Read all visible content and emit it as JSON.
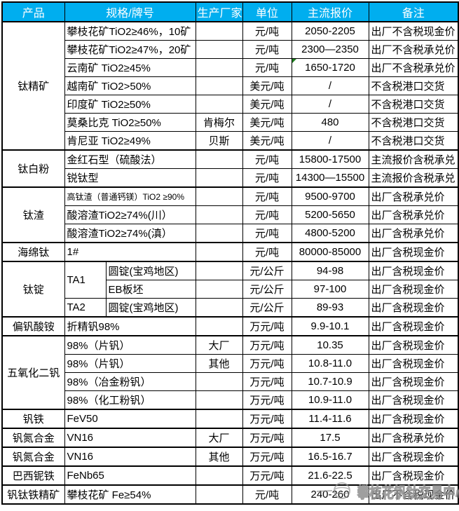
{
  "colors": {
    "header_bg": "#00AEEF",
    "header_fg": "#FFFFFF",
    "grid": "#000000",
    "comment_marker": "#1E7F1E",
    "watermark": "#8F8F8F"
  },
  "header": {
    "columns": [
      "产品",
      "规格/牌号",
      "生产厂家",
      "单位",
      "主流报价",
      "备注"
    ]
  },
  "rows": [
    {
      "group_start": true,
      "cells": [
        {
          "type": "product",
          "text": "钛精矿",
          "rowspan": 7
        },
        {
          "type": "spec",
          "text": "攀枝花矿TiO2≥46%，10矿"
        },
        {
          "type": "maker",
          "text": ""
        },
        {
          "type": "unit",
          "text": "元/吨"
        },
        {
          "type": "price",
          "text": "2050-2205"
        },
        {
          "type": "note",
          "text": "出厂不含税现金价"
        }
      ]
    },
    {
      "cells": [
        {
          "type": "spec",
          "text": "攀枝花矿TiO2≥47%，20矿"
        },
        {
          "type": "maker",
          "text": ""
        },
        {
          "type": "unit",
          "text": "元/吨"
        },
        {
          "type": "price",
          "text": "2300—2350"
        },
        {
          "type": "note",
          "text": "出厂不含税承兑价"
        }
      ]
    },
    {
      "cells": [
        {
          "type": "spec",
          "text": "云南矿 TiO2≥45%"
        },
        {
          "type": "maker",
          "text": ""
        },
        {
          "type": "unit",
          "text": "元/吨"
        },
        {
          "type": "price",
          "text": "1650-1720",
          "marker": true
        },
        {
          "type": "note",
          "text": "出厂不含税承兑价"
        }
      ]
    },
    {
      "cells": [
        {
          "type": "spec",
          "text": "越南矿 TiO2>50%"
        },
        {
          "type": "maker",
          "text": ""
        },
        {
          "type": "unit",
          "text": "美元/吨"
        },
        {
          "type": "price",
          "text": "/"
        },
        {
          "type": "note",
          "text": "不含税港口交货"
        }
      ]
    },
    {
      "cells": [
        {
          "type": "spec",
          "text": "印度矿 TiO2≥50%"
        },
        {
          "type": "maker",
          "text": ""
        },
        {
          "type": "unit",
          "text": "美元/吨"
        },
        {
          "type": "price",
          "text": "/"
        },
        {
          "type": "note",
          "text": "不含税港口交货"
        }
      ]
    },
    {
      "cells": [
        {
          "type": "spec",
          "text": "莫桑比克 TiO2≥50%"
        },
        {
          "type": "maker",
          "text": "肯梅尔"
        },
        {
          "type": "unit",
          "text": "美元/吨"
        },
        {
          "type": "price",
          "text": "480"
        },
        {
          "type": "note",
          "text": "不含税港口交货"
        }
      ]
    },
    {
      "cells": [
        {
          "type": "spec",
          "text": "肯尼亚 TiO2≥49%"
        },
        {
          "type": "maker",
          "text": "贝斯"
        },
        {
          "type": "unit",
          "text": "美元/吨"
        },
        {
          "type": "price",
          "text": "/"
        },
        {
          "type": "note",
          "text": "不含税港口交货"
        }
      ]
    },
    {
      "group_start": true,
      "cells": [
        {
          "type": "product",
          "text": "钛白粉",
          "rowspan": 2
        },
        {
          "type": "spec",
          "text": "金红石型（硫酸法）"
        },
        {
          "type": "maker",
          "text": ""
        },
        {
          "type": "unit",
          "text": "元/吨"
        },
        {
          "type": "price",
          "text": "15800-17500"
        },
        {
          "type": "note",
          "text": "主流报价含税承兑"
        }
      ]
    },
    {
      "cells": [
        {
          "type": "spec",
          "text": "锐钛型"
        },
        {
          "type": "maker",
          "text": ""
        },
        {
          "type": "unit",
          "text": "元/吨"
        },
        {
          "type": "price",
          "text": "14300—15500"
        },
        {
          "type": "note",
          "text": "主流报价含税承兑"
        }
      ]
    },
    {
      "group_start": true,
      "cells": [
        {
          "type": "product",
          "text": "钛渣",
          "rowspan": 3
        },
        {
          "type": "spec",
          "text": "高钛渣（普通钙镁）TiO2 ≥90%"
        },
        {
          "type": "maker",
          "text": ""
        },
        {
          "type": "unit",
          "text": "元/吨"
        },
        {
          "type": "price",
          "text": "9500-9700"
        },
        {
          "type": "note",
          "text": "出厂含税承兑价"
        }
      ]
    },
    {
      "cells": [
        {
          "type": "spec",
          "text": "酸溶渣TiO2≥74%(川）"
        },
        {
          "type": "maker",
          "text": ""
        },
        {
          "type": "unit",
          "text": "元/吨"
        },
        {
          "type": "price",
          "text": "5200-5650"
        },
        {
          "type": "note",
          "text": "出厂含税承兑价"
        }
      ]
    },
    {
      "cells": [
        {
          "type": "spec",
          "text": "酸溶渣TiO2≥74%(滇）"
        },
        {
          "type": "maker",
          "text": ""
        },
        {
          "type": "unit",
          "text": "元/吨"
        },
        {
          "type": "price",
          "text": "4800-5200"
        },
        {
          "type": "note",
          "text": "出厂含税承兑价"
        }
      ]
    },
    {
      "group_start": true,
      "cells": [
        {
          "type": "product",
          "text": "海绵钛",
          "rowspan": 1
        },
        {
          "type": "spec",
          "text": "1#"
        },
        {
          "type": "maker",
          "text": ""
        },
        {
          "type": "unit",
          "text": "元/吨"
        },
        {
          "type": "price",
          "text": "80000-85000"
        },
        {
          "type": "note",
          "text": "出厂含税现金价"
        }
      ]
    },
    {
      "group_start": true,
      "cells": [
        {
          "type": "product",
          "text": "钛锭",
          "rowspan": 3
        },
        {
          "type": "specA",
          "text": "TA1",
          "rowspan": 2
        },
        {
          "type": "specB",
          "text": "圆锭(宝鸡地区)"
        },
        {
          "type": "maker",
          "text": ""
        },
        {
          "type": "unit",
          "text": "元/公斤"
        },
        {
          "type": "price",
          "text": "94-98"
        },
        {
          "type": "note",
          "text": "出厂含税现金价"
        }
      ]
    },
    {
      "cells": [
        {
          "type": "specB",
          "text": "EB板坯"
        },
        {
          "type": "maker",
          "text": ""
        },
        {
          "type": "unit",
          "text": "元/公斤"
        },
        {
          "type": "price",
          "text": "97-100"
        },
        {
          "type": "note",
          "text": "出厂含税现金价"
        }
      ]
    },
    {
      "cells": [
        {
          "type": "specA",
          "text": "TA2"
        },
        {
          "type": "specB",
          "text": "圆锭(宝鸡地区)"
        },
        {
          "type": "maker",
          "text": ""
        },
        {
          "type": "unit",
          "text": "元/公斤"
        },
        {
          "type": "price",
          "text": "89-93"
        },
        {
          "type": "note",
          "text": "出厂含税现金价"
        }
      ]
    },
    {
      "group_start": true,
      "cells": [
        {
          "type": "product",
          "text": "偏钒酸铵",
          "rowspan": 1
        },
        {
          "type": "spec",
          "text": "折精钒98%"
        },
        {
          "type": "maker",
          "text": ""
        },
        {
          "type": "unit",
          "text": "万元/吨"
        },
        {
          "type": "price",
          "text": "9.9-10.1"
        },
        {
          "type": "note",
          "text": "出厂含税现金价"
        }
      ]
    },
    {
      "group_start": true,
      "cells": [
        {
          "type": "product",
          "text": "五氧化二钒",
          "rowspan": 4
        },
        {
          "type": "spec",
          "text": "98%（片钒）"
        },
        {
          "type": "maker",
          "text": "大厂"
        },
        {
          "type": "unit",
          "text": "万元/吨"
        },
        {
          "type": "price",
          "text": "10.35"
        },
        {
          "type": "note",
          "text": "出厂含税现金价"
        }
      ]
    },
    {
      "cells": [
        {
          "type": "spec",
          "text": "98%（片钒）"
        },
        {
          "type": "maker",
          "text": "其他"
        },
        {
          "type": "unit",
          "text": "万元/吨"
        },
        {
          "type": "price",
          "text": "10.8-11.0"
        },
        {
          "type": "note",
          "text": "出厂含税现金价"
        }
      ]
    },
    {
      "cells": [
        {
          "type": "spec",
          "text": "98%（冶金粉钒）"
        },
        {
          "type": "maker",
          "text": ""
        },
        {
          "type": "unit",
          "text": "万元/吨"
        },
        {
          "type": "price",
          "text": "10.7-10.9"
        },
        {
          "type": "note",
          "text": "出厂含税现金价"
        }
      ]
    },
    {
      "cells": [
        {
          "type": "spec",
          "text": "98%（化工粉钒）"
        },
        {
          "type": "maker",
          "text": ""
        },
        {
          "type": "unit",
          "text": "万元/吨"
        },
        {
          "type": "price",
          "text": "10.9-11.0"
        },
        {
          "type": "note",
          "text": "出厂含税现金价"
        }
      ]
    },
    {
      "group_start": true,
      "cells": [
        {
          "type": "product",
          "text": "钒铁",
          "rowspan": 1
        },
        {
          "type": "spec",
          "text": "FeV50"
        },
        {
          "type": "maker",
          "text": ""
        },
        {
          "type": "unit",
          "text": "万元/吨"
        },
        {
          "type": "price",
          "text": "11.4-11.6"
        },
        {
          "type": "note",
          "text": "出厂含税现金价"
        }
      ]
    },
    {
      "group_start": true,
      "cells": [
        {
          "type": "product",
          "text": "钒氮合金",
          "rowspan": 1
        },
        {
          "type": "spec",
          "text": "VN16"
        },
        {
          "type": "maker",
          "text": "大厂"
        },
        {
          "type": "unit",
          "text": "万元/吨"
        },
        {
          "type": "price",
          "text": "17.5"
        },
        {
          "type": "note",
          "text": "出厂含税承兑价"
        }
      ]
    },
    {
      "group_start": true,
      "cells": [
        {
          "type": "product",
          "text": "钒氮合金",
          "rowspan": 1
        },
        {
          "type": "spec",
          "text": "VN16"
        },
        {
          "type": "maker",
          "text": "其他"
        },
        {
          "type": "unit",
          "text": "万元/吨"
        },
        {
          "type": "price",
          "text": "16.5-16.7"
        },
        {
          "type": "note",
          "text": "出厂含税现金价"
        }
      ]
    },
    {
      "group_start": true,
      "cells": [
        {
          "type": "product",
          "text": "巴西铌铁",
          "rowspan": 1
        },
        {
          "type": "spec",
          "text": "FeNb65"
        },
        {
          "type": "maker",
          "text": ""
        },
        {
          "type": "unit",
          "text": "万元/吨"
        },
        {
          "type": "price",
          "text": "21.6-22.5"
        },
        {
          "type": "note",
          "text": "出厂含税现金价"
        }
      ]
    },
    {
      "group_start": true,
      "cells": [
        {
          "type": "product",
          "text": "钒钛铁精矿",
          "rowspan": 1
        },
        {
          "type": "spec",
          "text": "攀枝花矿 Fe≥54%"
        },
        {
          "type": "maker",
          "text": ""
        },
        {
          "type": "unit",
          "text": "元/吨"
        },
        {
          "type": "price",
          "text": "240-260"
        },
        {
          "type": "note",
          "text": "出厂不含税现金价"
        }
      ]
    }
  ],
  "watermark": {
    "text": "攀枝花钒钛交易中心",
    "logo": "globe-icon"
  }
}
